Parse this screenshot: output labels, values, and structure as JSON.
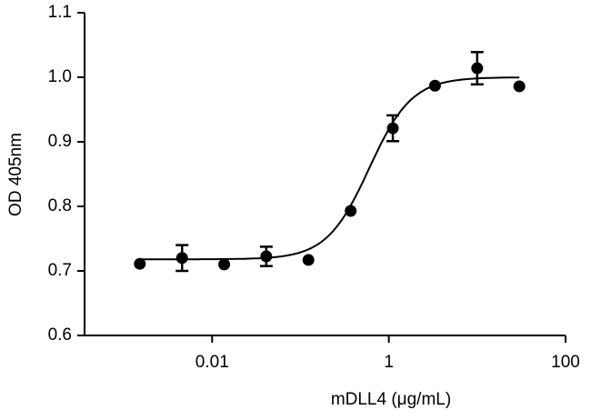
{
  "chart_data": {
    "type": "scatter",
    "xlabel": "mDLL4 (μg/mL)",
    "ylabel": "OD 405nm",
    "xscale": "log",
    "xlim": [
      0.00036,
      100
    ],
    "xticks": [
      0.01,
      1,
      100
    ],
    "ylim": [
      0.6,
      1.1
    ],
    "yticks": [
      0.6,
      0.7,
      0.8,
      0.9,
      {
        "value": 1,
        "label": "1.0"
      },
      1.1
    ],
    "x": [
      0.00152,
      0.00457,
      0.0137,
      0.041,
      0.123,
      0.37,
      1.11,
      3.33,
      10,
      30
    ],
    "series": [
      {
        "color": "#000000",
        "values": [
          0.711,
          0.72,
          0.71,
          0.7225,
          0.717,
          0.793,
          0.921,
          0.987,
          1.014,
          0.986
        ],
        "errors": [
          null,
          0.02,
          null,
          0.015,
          null,
          null,
          0.02,
          null,
          0.025,
          null
        ]
      }
    ],
    "fit": {
      "bottom": 0.718,
      "top": 1.0,
      "ec50": 0.6,
      "hill": 1.8
    }
  }
}
